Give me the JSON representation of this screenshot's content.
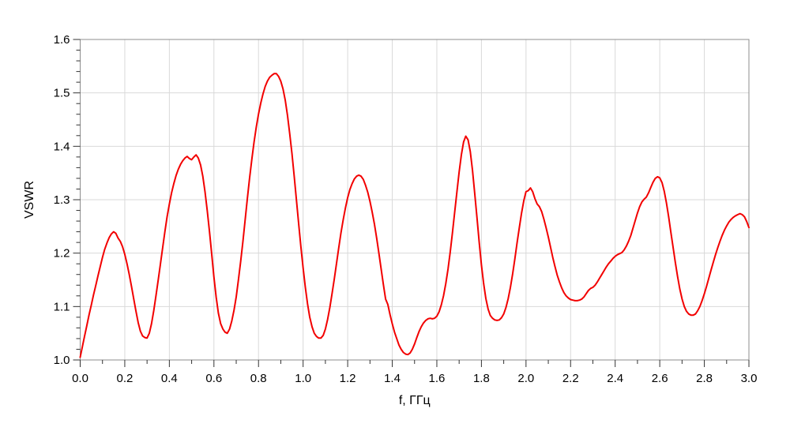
{
  "chart_data": {
    "type": "line",
    "title": "",
    "xlabel": "f, ГГц",
    "ylabel": "VSWR",
    "xlim": [
      0.0,
      3.0
    ],
    "ylim": [
      1.0,
      1.6
    ],
    "x_major_step": 0.2,
    "x_minor_step": 0.1,
    "y_major_step": 0.1,
    "y_minor_step": 0.02,
    "grid": true,
    "legend": "none",
    "x_tick_labels": [
      "0.0",
      "0.2",
      "0.4",
      "0.6",
      "0.8",
      "1.0",
      "1.2",
      "1.4",
      "1.6",
      "1.8",
      "2.0",
      "2.2",
      "2.4",
      "2.6",
      "2.8",
      "3.0"
    ],
    "y_tick_labels": [
      "1.0",
      "1.1",
      "1.2",
      "1.3",
      "1.4",
      "1.5",
      "1.6"
    ],
    "series": [
      {
        "name": "VSWR",
        "color": "#f20000",
        "points": [
          [
            0.0,
            1.005
          ],
          [
            0.01,
            1.025
          ],
          [
            0.02,
            1.045
          ],
          [
            0.03,
            1.065
          ],
          [
            0.04,
            1.085
          ],
          [
            0.05,
            1.103
          ],
          [
            0.06,
            1.122
          ],
          [
            0.07,
            1.14
          ],
          [
            0.08,
            1.158
          ],
          [
            0.09,
            1.175
          ],
          [
            0.1,
            1.192
          ],
          [
            0.11,
            1.207
          ],
          [
            0.12,
            1.219
          ],
          [
            0.13,
            1.229
          ],
          [
            0.14,
            1.236
          ],
          [
            0.15,
            1.24
          ],
          [
            0.16,
            1.237
          ],
          [
            0.17,
            1.228
          ],
          [
            0.18,
            1.222
          ],
          [
            0.19,
            1.212
          ],
          [
            0.2,
            1.198
          ],
          [
            0.21,
            1.18
          ],
          [
            0.22,
            1.16
          ],
          [
            0.23,
            1.138
          ],
          [
            0.24,
            1.115
          ],
          [
            0.25,
            1.092
          ],
          [
            0.26,
            1.07
          ],
          [
            0.27,
            1.054
          ],
          [
            0.28,
            1.045
          ],
          [
            0.29,
            1.042
          ],
          [
            0.3,
            1.041
          ],
          [
            0.31,
            1.05
          ],
          [
            0.32,
            1.068
          ],
          [
            0.33,
            1.092
          ],
          [
            0.34,
            1.12
          ],
          [
            0.35,
            1.15
          ],
          [
            0.36,
            1.18
          ],
          [
            0.37,
            1.21
          ],
          [
            0.38,
            1.24
          ],
          [
            0.39,
            1.268
          ],
          [
            0.4,
            1.292
          ],
          [
            0.41,
            1.313
          ],
          [
            0.42,
            1.33
          ],
          [
            0.43,
            1.345
          ],
          [
            0.44,
            1.357
          ],
          [
            0.45,
            1.366
          ],
          [
            0.46,
            1.373
          ],
          [
            0.47,
            1.378
          ],
          [
            0.48,
            1.381
          ],
          [
            0.49,
            1.377
          ],
          [
            0.5,
            1.375
          ],
          [
            0.51,
            1.38
          ],
          [
            0.52,
            1.384
          ],
          [
            0.53,
            1.378
          ],
          [
            0.54,
            1.365
          ],
          [
            0.55,
            1.344
          ],
          [
            0.56,
            1.315
          ],
          [
            0.57,
            1.28
          ],
          [
            0.58,
            1.24
          ],
          [
            0.59,
            1.198
          ],
          [
            0.6,
            1.155
          ],
          [
            0.61,
            1.118
          ],
          [
            0.62,
            1.088
          ],
          [
            0.63,
            1.068
          ],
          [
            0.64,
            1.058
          ],
          [
            0.65,
            1.052
          ],
          [
            0.66,
            1.05
          ],
          [
            0.67,
            1.058
          ],
          [
            0.68,
            1.073
          ],
          [
            0.69,
            1.093
          ],
          [
            0.7,
            1.118
          ],
          [
            0.71,
            1.15
          ],
          [
            0.72,
            1.185
          ],
          [
            0.73,
            1.222
          ],
          [
            0.74,
            1.262
          ],
          [
            0.75,
            1.302
          ],
          [
            0.76,
            1.34
          ],
          [
            0.77,
            1.376
          ],
          [
            0.78,
            1.408
          ],
          [
            0.79,
            1.436
          ],
          [
            0.8,
            1.46
          ],
          [
            0.81,
            1.481
          ],
          [
            0.82,
            1.498
          ],
          [
            0.83,
            1.512
          ],
          [
            0.84,
            1.522
          ],
          [
            0.85,
            1.529
          ],
          [
            0.86,
            1.533
          ],
          [
            0.87,
            1.536
          ],
          [
            0.88,
            1.536
          ],
          [
            0.89,
            1.531
          ],
          [
            0.9,
            1.522
          ],
          [
            0.91,
            1.507
          ],
          [
            0.92,
            1.486
          ],
          [
            0.93,
            1.458
          ],
          [
            0.94,
            1.424
          ],
          [
            0.95,
            1.386
          ],
          [
            0.96,
            1.344
          ],
          [
            0.97,
            1.3
          ],
          [
            0.98,
            1.256
          ],
          [
            0.99,
            1.213
          ],
          [
            1.0,
            1.172
          ],
          [
            1.01,
            1.136
          ],
          [
            1.02,
            1.105
          ],
          [
            1.03,
            1.08
          ],
          [
            1.04,
            1.062
          ],
          [
            1.05,
            1.05
          ],
          [
            1.06,
            1.044
          ],
          [
            1.07,
            1.041
          ],
          [
            1.08,
            1.041
          ],
          [
            1.09,
            1.046
          ],
          [
            1.1,
            1.058
          ],
          [
            1.11,
            1.076
          ],
          [
            1.12,
            1.098
          ],
          [
            1.13,
            1.124
          ],
          [
            1.14,
            1.152
          ],
          [
            1.15,
            1.181
          ],
          [
            1.16,
            1.21
          ],
          [
            1.17,
            1.238
          ],
          [
            1.18,
            1.263
          ],
          [
            1.19,
            1.285
          ],
          [
            1.2,
            1.304
          ],
          [
            1.21,
            1.319
          ],
          [
            1.22,
            1.33
          ],
          [
            1.23,
            1.339
          ],
          [
            1.24,
            1.344
          ],
          [
            1.25,
            1.346
          ],
          [
            1.26,
            1.344
          ],
          [
            1.27,
            1.338
          ],
          [
            1.28,
            1.327
          ],
          [
            1.29,
            1.314
          ],
          [
            1.3,
            1.297
          ],
          [
            1.31,
            1.277
          ],
          [
            1.32,
            1.254
          ],
          [
            1.33,
            1.228
          ],
          [
            1.34,
            1.2
          ],
          [
            1.35,
            1.171
          ],
          [
            1.36,
            1.142
          ],
          [
            1.37,
            1.114
          ],
          [
            1.38,
            1.104
          ],
          [
            1.39,
            1.085
          ],
          [
            1.4,
            1.068
          ],
          [
            1.41,
            1.052
          ],
          [
            1.42,
            1.04
          ],
          [
            1.43,
            1.028
          ],
          [
            1.44,
            1.02
          ],
          [
            1.45,
            1.014
          ],
          [
            1.46,
            1.011
          ],
          [
            1.47,
            1.01
          ],
          [
            1.48,
            1.013
          ],
          [
            1.49,
            1.02
          ],
          [
            1.5,
            1.03
          ],
          [
            1.51,
            1.042
          ],
          [
            1.52,
            1.053
          ],
          [
            1.53,
            1.062
          ],
          [
            1.54,
            1.069
          ],
          [
            1.55,
            1.074
          ],
          [
            1.56,
            1.077
          ],
          [
            1.57,
            1.078
          ],
          [
            1.58,
            1.077
          ],
          [
            1.59,
            1.078
          ],
          [
            1.6,
            1.082
          ],
          [
            1.61,
            1.09
          ],
          [
            1.62,
            1.103
          ],
          [
            1.63,
            1.12
          ],
          [
            1.64,
            1.143
          ],
          [
            1.65,
            1.17
          ],
          [
            1.66,
            1.202
          ],
          [
            1.67,
            1.238
          ],
          [
            1.68,
            1.276
          ],
          [
            1.69,
            1.315
          ],
          [
            1.7,
            1.352
          ],
          [
            1.71,
            1.384
          ],
          [
            1.72,
            1.408
          ],
          [
            1.73,
            1.419
          ],
          [
            1.74,
            1.412
          ],
          [
            1.75,
            1.39
          ],
          [
            1.76,
            1.355
          ],
          [
            1.77,
            1.312
          ],
          [
            1.78,
            1.266
          ],
          [
            1.79,
            1.22
          ],
          [
            1.8,
            1.178
          ],
          [
            1.81,
            1.143
          ],
          [
            1.82,
            1.115
          ],
          [
            1.83,
            1.095
          ],
          [
            1.84,
            1.083
          ],
          [
            1.85,
            1.078
          ],
          [
            1.86,
            1.075
          ],
          [
            1.87,
            1.074
          ],
          [
            1.88,
            1.075
          ],
          [
            1.89,
            1.079
          ],
          [
            1.9,
            1.086
          ],
          [
            1.91,
            1.098
          ],
          [
            1.92,
            1.115
          ],
          [
            1.93,
            1.136
          ],
          [
            1.94,
            1.161
          ],
          [
            1.95,
            1.189
          ],
          [
            1.96,
            1.219
          ],
          [
            1.97,
            1.248
          ],
          [
            1.98,
            1.275
          ],
          [
            1.99,
            1.298
          ],
          [
            2.0,
            1.315
          ],
          [
            2.01,
            1.317
          ],
          [
            2.02,
            1.322
          ],
          [
            2.03,
            1.315
          ],
          [
            2.04,
            1.302
          ],
          [
            2.05,
            1.292
          ],
          [
            2.06,
            1.287
          ],
          [
            2.07,
            1.278
          ],
          [
            2.08,
            1.264
          ],
          [
            2.09,
            1.248
          ],
          [
            2.1,
            1.23
          ],
          [
            2.11,
            1.211
          ],
          [
            2.12,
            1.192
          ],
          [
            2.13,
            1.175
          ],
          [
            2.14,
            1.159
          ],
          [
            2.15,
            1.146
          ],
          [
            2.16,
            1.135
          ],
          [
            2.17,
            1.126
          ],
          [
            2.18,
            1.12
          ],
          [
            2.19,
            1.116
          ],
          [
            2.2,
            1.113
          ],
          [
            2.21,
            1.112
          ],
          [
            2.22,
            1.111
          ],
          [
            2.23,
            1.111
          ],
          [
            2.24,
            1.112
          ],
          [
            2.25,
            1.114
          ],
          [
            2.26,
            1.118
          ],
          [
            2.27,
            1.124
          ],
          [
            2.28,
            1.13
          ],
          [
            2.29,
            1.134
          ],
          [
            2.3,
            1.136
          ],
          [
            2.31,
            1.14
          ],
          [
            2.32,
            1.146
          ],
          [
            2.33,
            1.153
          ],
          [
            2.34,
            1.16
          ],
          [
            2.35,
            1.167
          ],
          [
            2.36,
            1.174
          ],
          [
            2.37,
            1.18
          ],
          [
            2.38,
            1.185
          ],
          [
            2.39,
            1.19
          ],
          [
            2.4,
            1.194
          ],
          [
            2.41,
            1.197
          ],
          [
            2.42,
            1.199
          ],
          [
            2.43,
            1.201
          ],
          [
            2.44,
            1.206
          ],
          [
            2.45,
            1.213
          ],
          [
            2.46,
            1.222
          ],
          [
            2.47,
            1.233
          ],
          [
            2.48,
            1.247
          ],
          [
            2.49,
            1.261
          ],
          [
            2.5,
            1.275
          ],
          [
            2.51,
            1.287
          ],
          [
            2.52,
            1.296
          ],
          [
            2.53,
            1.301
          ],
          [
            2.54,
            1.305
          ],
          [
            2.55,
            1.313
          ],
          [
            2.56,
            1.323
          ],
          [
            2.57,
            1.333
          ],
          [
            2.58,
            1.34
          ],
          [
            2.59,
            1.343
          ],
          [
            2.6,
            1.341
          ],
          [
            2.61,
            1.332
          ],
          [
            2.62,
            1.316
          ],
          [
            2.63,
            1.294
          ],
          [
            2.64,
            1.268
          ],
          [
            2.65,
            1.239
          ],
          [
            2.66,
            1.21
          ],
          [
            2.67,
            1.182
          ],
          [
            2.68,
            1.156
          ],
          [
            2.69,
            1.133
          ],
          [
            2.7,
            1.114
          ],
          [
            2.71,
            1.1
          ],
          [
            2.72,
            1.091
          ],
          [
            2.73,
            1.086
          ],
          [
            2.74,
            1.084
          ],
          [
            2.75,
            1.084
          ],
          [
            2.76,
            1.086
          ],
          [
            2.77,
            1.092
          ],
          [
            2.78,
            1.1
          ],
          [
            2.79,
            1.111
          ],
          [
            2.8,
            1.124
          ],
          [
            2.81,
            1.138
          ],
          [
            2.82,
            1.153
          ],
          [
            2.83,
            1.168
          ],
          [
            2.84,
            1.183
          ],
          [
            2.85,
            1.197
          ],
          [
            2.86,
            1.21
          ],
          [
            2.87,
            1.222
          ],
          [
            2.88,
            1.233
          ],
          [
            2.89,
            1.243
          ],
          [
            2.9,
            1.251
          ],
          [
            2.91,
            1.258
          ],
          [
            2.92,
            1.263
          ],
          [
            2.93,
            1.267
          ],
          [
            2.94,
            1.27
          ],
          [
            2.95,
            1.272
          ],
          [
            2.96,
            1.274
          ],
          [
            2.97,
            1.272
          ],
          [
            2.98,
            1.268
          ],
          [
            2.99,
            1.259
          ],
          [
            3.0,
            1.248
          ]
        ]
      }
    ]
  },
  "layout_colors": {
    "background": "#ffffff",
    "frame": "#8c8c8c",
    "grid": "#d9d9d9",
    "tick": "#333333",
    "label": "#000000",
    "line": "#f20000"
  }
}
